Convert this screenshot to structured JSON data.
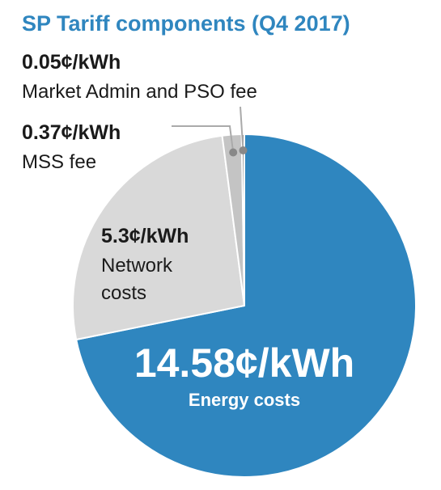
{
  "chart_data": {
    "type": "pie",
    "title": "SP Tariff components (Q4 2017)",
    "slices": [
      {
        "value": 14.58,
        "value_label": "14.58¢/kWh",
        "name": "Energy costs",
        "color": "#2f86bf"
      },
      {
        "value": 5.3,
        "value_label": "5.3¢/kWh",
        "name": "Network costs",
        "name_lines": [
          "Network",
          "costs"
        ],
        "color": "#d9d9d9"
      },
      {
        "value": 0.37,
        "value_label": "0.37¢/kWh",
        "name": "MSS fee",
        "color": "#c4c4c4"
      },
      {
        "value": 0.05,
        "value_label": "0.05¢/kWh",
        "name": "Market Admin and PSO fee",
        "color": "#8c8c8c"
      }
    ],
    "legend": "none"
  },
  "colors": {
    "title": "#2f86bf",
    "slice_border": "#ffffff",
    "leader": "#aaaaaa",
    "dot": "#888888"
  }
}
